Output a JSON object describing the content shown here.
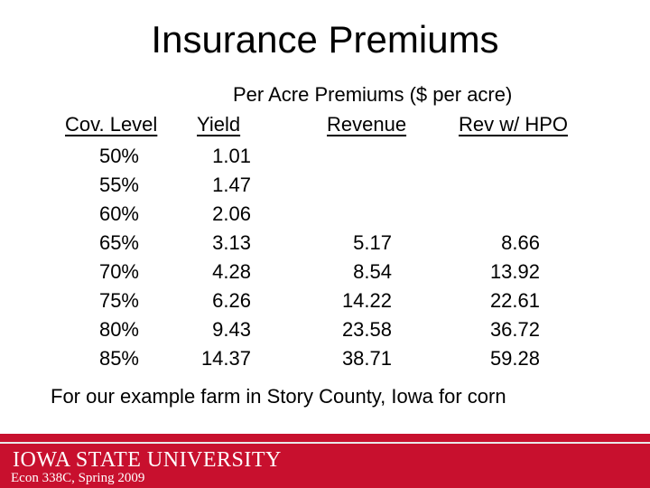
{
  "slide": {
    "title": "Insurance Premiums",
    "table_caption": "Per Acre Premiums ($ per acre)",
    "columns": {
      "coverage": "Cov. Level",
      "yield": "Yield",
      "revenue": "Revenue",
      "revenue_hpo": "Rev w/ HPO"
    },
    "rows": [
      {
        "coverage": "50%",
        "yield": "1.01",
        "revenue": "",
        "revenue_hpo": ""
      },
      {
        "coverage": "55%",
        "yield": "1.47",
        "revenue": "",
        "revenue_hpo": ""
      },
      {
        "coverage": "60%",
        "yield": "2.06",
        "revenue": "",
        "revenue_hpo": ""
      },
      {
        "coverage": "65%",
        "yield": "3.13",
        "revenue": "5.17",
        "revenue_hpo": "8.66"
      },
      {
        "coverage": "70%",
        "yield": "4.28",
        "revenue": "8.54",
        "revenue_hpo": "13.92"
      },
      {
        "coverage": "75%",
        "yield": "6.26",
        "revenue": "14.22",
        "revenue_hpo": "22.61"
      },
      {
        "coverage": "80%",
        "yield": "9.43",
        "revenue": "23.58",
        "revenue_hpo": "36.72"
      },
      {
        "coverage": "85%",
        "yield": "14.37",
        "revenue": "38.71",
        "revenue_hpo": "59.28"
      }
    ],
    "footnote": "For our example farm in Story County, Iowa for corn"
  },
  "footer": {
    "logo_text": "IOWA STATE UNIVERSITY",
    "course_label": "Econ 338C, Spring 2009",
    "brand_color": "#c8102e"
  }
}
